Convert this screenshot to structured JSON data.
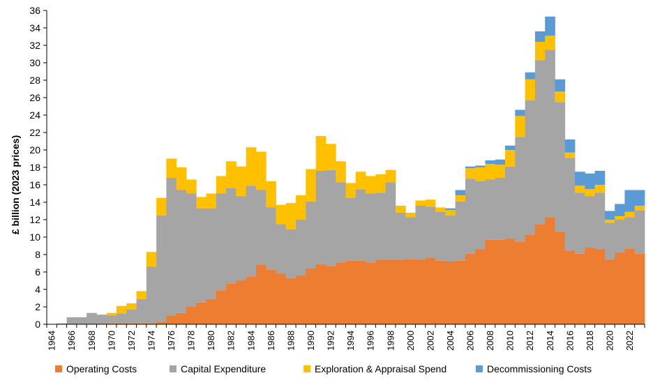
{
  "chart_data": {
    "type": "bar",
    "stacked": true,
    "title": "",
    "xlabel": "",
    "ylabel": "£ billion (2023 prices)",
    "ylim": [
      0,
      36
    ],
    "y_ticks": [
      0,
      2,
      4,
      6,
      8,
      10,
      12,
      14,
      16,
      18,
      20,
      22,
      24,
      26,
      28,
      30,
      32,
      34,
      36
    ],
    "grid": false,
    "legend_position": "bottom",
    "x": [
      1964,
      1965,
      1966,
      1967,
      1968,
      1969,
      1970,
      1971,
      1972,
      1973,
      1974,
      1975,
      1976,
      1977,
      1978,
      1979,
      1980,
      1981,
      1982,
      1983,
      1984,
      1985,
      1986,
      1987,
      1988,
      1989,
      1990,
      1991,
      1992,
      1993,
      1994,
      1995,
      1996,
      1997,
      1998,
      1999,
      2000,
      2001,
      2002,
      2003,
      2004,
      2005,
      2006,
      2007,
      2008,
      2009,
      2010,
      2011,
      2012,
      2013,
      2014,
      2015,
      2016,
      2017,
      2018,
      2019,
      2020,
      2021,
      2022,
      2023
    ],
    "x_tick_labels": [
      "1964",
      "1966",
      "1968",
      "1970",
      "1972",
      "1974",
      "1976",
      "1978",
      "1980",
      "1982",
      "1984",
      "1986",
      "1988",
      "1990",
      "1992",
      "1994",
      "1996",
      "1998",
      "2000",
      "2002",
      "2004",
      "2006",
      "2008",
      "2010",
      "2012",
      "2014",
      "2016",
      "2018",
      "2020",
      "2022"
    ],
    "series": [
      {
        "name": "Operating Costs",
        "color": "#ED7D31",
        "values": [
          0,
          0,
          0,
          0,
          0,
          0,
          0.1,
          0.1,
          0.1,
          0.1,
          0.1,
          0.3,
          1.0,
          1.3,
          2.0,
          2.5,
          2.9,
          3.9,
          4.7,
          5.0,
          5.5,
          6.8,
          6.3,
          5.8,
          5.3,
          5.6,
          6.4,
          6.9,
          6.7,
          7.1,
          7.3,
          7.3,
          7.1,
          7.4,
          7.4,
          7.4,
          7.5,
          7.4,
          7.6,
          7.3,
          7.2,
          7.3,
          8.1,
          8.6,
          9.7,
          9.7,
          9.8,
          9.5,
          10.3,
          11.5,
          12.3,
          10.6,
          8.4,
          8.1,
          8.8,
          8.6,
          7.4,
          8.2,
          8.7,
          8.1
        ]
      },
      {
        "name": "Capital Expenditure",
        "color": "#A5A5A5",
        "values": [
          0,
          0.1,
          0.8,
          0.8,
          1.3,
          1.1,
          0.9,
          1.1,
          1.6,
          2.8,
          6.5,
          12.2,
          15.8,
          14.1,
          13.0,
          10.8,
          10.4,
          11.1,
          10.9,
          9.7,
          10.4,
          8.6,
          7.1,
          5.7,
          5.6,
          6.4,
          7.7,
          10.7,
          11.0,
          9.2,
          7.2,
          8.2,
          7.9,
          7.7,
          8.9,
          5.4,
          4.8,
          6.2,
          5.9,
          5.6,
          5.3,
          6.8,
          8.6,
          7.8,
          6.9,
          7.1,
          8.3,
          12.0,
          15.4,
          18.8,
          19.2,
          14.9,
          10.7,
          7.0,
          5.9,
          6.5,
          4.2,
          3.8,
          3.6,
          5.0
        ]
      },
      {
        "name": "Exploration & Appraisal Spend",
        "color": "#FFC000",
        "values": [
          0,
          0,
          0,
          0,
          0,
          0,
          0.3,
          0.9,
          0.7,
          0.9,
          1.7,
          2.0,
          2.2,
          2.6,
          1.6,
          1.3,
          1.7,
          2.0,
          3.1,
          3.4,
          4.4,
          4.4,
          3.0,
          2.2,
          3.0,
          2.8,
          3.7,
          4.0,
          3.0,
          2.4,
          1.7,
          2.0,
          2.0,
          2.1,
          1.4,
          0.8,
          0.5,
          0.6,
          0.8,
          0.5,
          0.6,
          0.7,
          1.2,
          1.6,
          1.8,
          1.5,
          1.9,
          2.4,
          2.4,
          2.1,
          1.6,
          1.2,
          0.6,
          0.8,
          0.8,
          0.9,
          0.4,
          0.4,
          0.6,
          0.5
        ]
      },
      {
        "name": "Decommissioning Costs",
        "color": "#5B9BD5",
        "values": [
          0,
          0,
          0,
          0,
          0,
          0,
          0,
          0,
          0,
          0,
          0,
          0,
          0,
          0,
          0,
          0,
          0,
          0,
          0,
          0,
          0,
          0,
          0,
          0,
          0,
          0,
          0,
          0,
          0,
          0,
          0,
          0,
          0,
          0,
          0,
          0,
          0,
          0,
          0,
          0,
          0.2,
          0.6,
          0.2,
          0.2,
          0.4,
          0.6,
          0.5,
          0.7,
          0.8,
          1.2,
          2.2,
          1.4,
          1.5,
          1.6,
          1.8,
          1.6,
          1.0,
          1.4,
          2.5,
          1.8
        ]
      }
    ]
  }
}
